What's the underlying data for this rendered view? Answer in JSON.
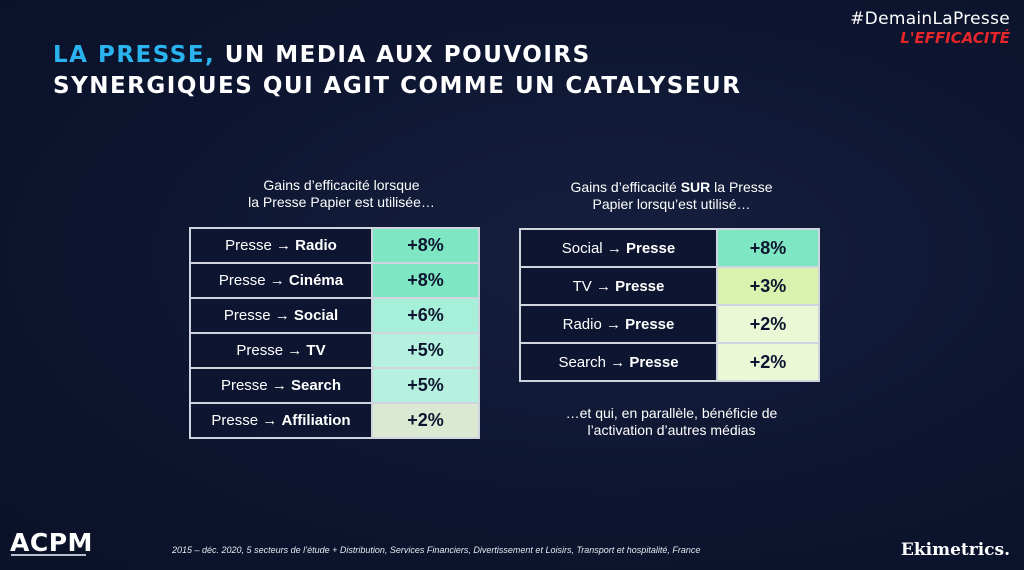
{
  "title": {
    "accent": "LA PRESSE,",
    "line1_rest": " UN MEDIA AUX POUVOIRS",
    "line2": "SYNERGIQUES QUI AGIT COMME UN CATALYSEUR"
  },
  "hashtag": {
    "line1": "#DemainLaPresse",
    "line2": "L'EFFICACITÉ"
  },
  "left": {
    "caption_line1": "Gains d’efficacité lorsque",
    "caption_line2": "la Presse Papier est utilisée…",
    "arrow": "→",
    "rows": [
      {
        "from": "Presse",
        "to": "Radio",
        "value": "+8%",
        "color": "#7ee6c3"
      },
      {
        "from": "Presse",
        "to": "Cinéma",
        "value": "+8%",
        "color": "#7ee6c3"
      },
      {
        "from": "Presse",
        "to": "Social",
        "value": "+6%",
        "color": "#a6efd8"
      },
      {
        "from": "Presse",
        "to": "TV",
        "value": "+5%",
        "color": "#b6f1df"
      },
      {
        "from": "Presse",
        "to": "Search",
        "value": "+5%",
        "color": "#b6f1df"
      },
      {
        "from": "Presse",
        "to": "Affiliation",
        "value": "+2%",
        "color": "#dbe8d2"
      }
    ]
  },
  "right": {
    "caption_pre": "Gains d’efficacité ",
    "caption_bold": "SUR",
    "caption_post": " la Presse",
    "caption_line2": "Papier lorsqu’est utilisé…",
    "arrow": "→",
    "rows": [
      {
        "from": "Social",
        "to": "Presse",
        "value": "+8%",
        "color": "#7ee6c3"
      },
      {
        "from": "TV",
        "to": "Presse",
        "value": "+3%",
        "color": "#d9f2ad"
      },
      {
        "from": "Radio",
        "to": "Presse",
        "value": "+2%",
        "color": "#eaf8d6"
      },
      {
        "from": "Search",
        "to": "Presse",
        "value": "+2%",
        "color": "#eaf8d6"
      }
    ],
    "footer_line1": "…et qui, en parallèle, bénéficie de",
    "footer_line2": "l’activation d’autres médias"
  },
  "footnote": "2015 – déc. 2020, 5 secteurs de l’étude + Distribution, Services Financiers, Divertissement et Loisirs, Transport et hospitalité, France",
  "logos": {
    "acpm": "ACPM",
    "ekimetrics": "Ekimetrics."
  }
}
